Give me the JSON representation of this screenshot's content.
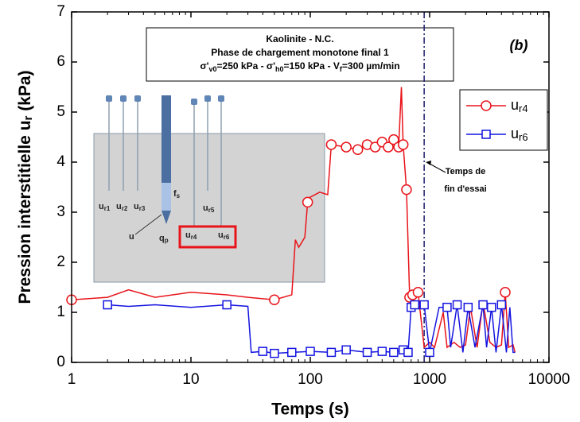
{
  "chart_data": {
    "type": "line",
    "box_lines": [
      "Kaolinite - N.C.",
      "Phase de chargement monotone final 1",
      [
        "σ'",
        "v0",
        "=250 kPa - σ'",
        "h0",
        "=150 kPa - V",
        "f",
        "=300 µm/min"
      ]
    ],
    "panel_label": "(b)",
    "x_label": "Temps (s)",
    "y_label": [
      "Pression interstitielle u",
      "r",
      " (kPa)"
    ],
    "xlim": [
      1,
      10000
    ],
    "xticks": [
      1,
      10,
      100,
      1000,
      10000
    ],
    "log_x": true,
    "ylim": [
      0,
      7
    ],
    "yticks": [
      0,
      1,
      2,
      3,
      4,
      5,
      6,
      7
    ],
    "legend_position": "upper right",
    "end_line": {
      "x": 900,
      "label": [
        "Temps de",
        "fin d'essai"
      ]
    },
    "series": [
      {
        "name": "u",
        "subscript": "r4",
        "color": "#e8141a",
        "marker": "circle",
        "x": [
          1,
          2,
          3,
          5,
          10,
          20,
          30,
          50,
          70,
          75,
          80,
          85,
          90,
          95,
          100,
          120,
          140,
          150,
          200,
          250,
          300,
          350,
          400,
          450,
          500,
          550,
          580,
          600,
          640,
          680,
          720,
          800,
          900,
          1000,
          1100,
          1300,
          1400,
          1600,
          1800,
          2000,
          2200,
          2500,
          2800,
          3200,
          3600,
          4000,
          4300,
          4600,
          5000,
          5200
        ],
        "values": [
          1.25,
          1.3,
          1.45,
          1.3,
          1.4,
          1.35,
          1.3,
          1.25,
          1.35,
          2.45,
          2.3,
          2.4,
          2.5,
          3.2,
          3.3,
          3.4,
          3.35,
          4.35,
          4.3,
          4.25,
          4.35,
          4.3,
          4.4,
          4.3,
          4.45,
          4.3,
          5.5,
          4.35,
          3.45,
          1.3,
          1.35,
          1.4,
          0.3,
          0.4,
          0.3,
          1.0,
          0.3,
          0.4,
          0.3,
          0.35,
          1.1,
          0.3,
          1.2,
          0.4,
          0.3,
          0.35,
          1.4,
          0.3,
          0.35,
          0.2
        ],
        "marker_indices": [
          0,
          7,
          13,
          17,
          18,
          19,
          20,
          21,
          22,
          23,
          24,
          25,
          27,
          28,
          29,
          30,
          31,
          46
        ]
      },
      {
        "name": "u",
        "subscript": "r6",
        "color": "#1414e0",
        "marker": "square",
        "x": [
          2,
          3,
          5,
          10,
          20,
          30,
          32,
          40,
          50,
          70,
          100,
          150,
          200,
          300,
          400,
          500,
          600,
          660,
          700,
          750,
          800,
          900,
          1000,
          1200,
          1400,
          1500,
          1700,
          1900,
          2100,
          2400,
          2800,
          3000,
          3300,
          3600,
          4000,
          4400,
          4700,
          5000,
          5200
        ],
        "values": [
          1.15,
          1.12,
          1.15,
          1.1,
          1.15,
          1.12,
          0.2,
          0.22,
          0.18,
          0.2,
          0.22,
          0.2,
          0.25,
          0.2,
          0.22,
          0.2,
          0.25,
          0.2,
          1.1,
          1.15,
          1.2,
          1.15,
          0.2,
          1.1,
          1.1,
          0.3,
          1.15,
          0.2,
          1.1,
          0.3,
          1.15,
          0.3,
          1.1,
          0.2,
          1.15,
          0.2,
          1.1,
          0.2,
          0.2
        ],
        "marker_indices": [
          0,
          4,
          7,
          8,
          9,
          10,
          11,
          12,
          13,
          14,
          15,
          16,
          17,
          18,
          19,
          21,
          22,
          24,
          26,
          28,
          30,
          32,
          34
        ]
      }
    ]
  },
  "inset": {
    "labels": [
      [
        "u",
        "r1"
      ],
      [
        "u",
        "r2"
      ],
      [
        "u",
        "r3"
      ],
      [
        "f",
        "s"
      ],
      [
        "u",
        "r5"
      ],
      [
        "u",
        ""
      ],
      [
        "q",
        "p"
      ],
      [
        "u",
        "r4"
      ],
      [
        "u",
        "r6"
      ]
    ]
  }
}
